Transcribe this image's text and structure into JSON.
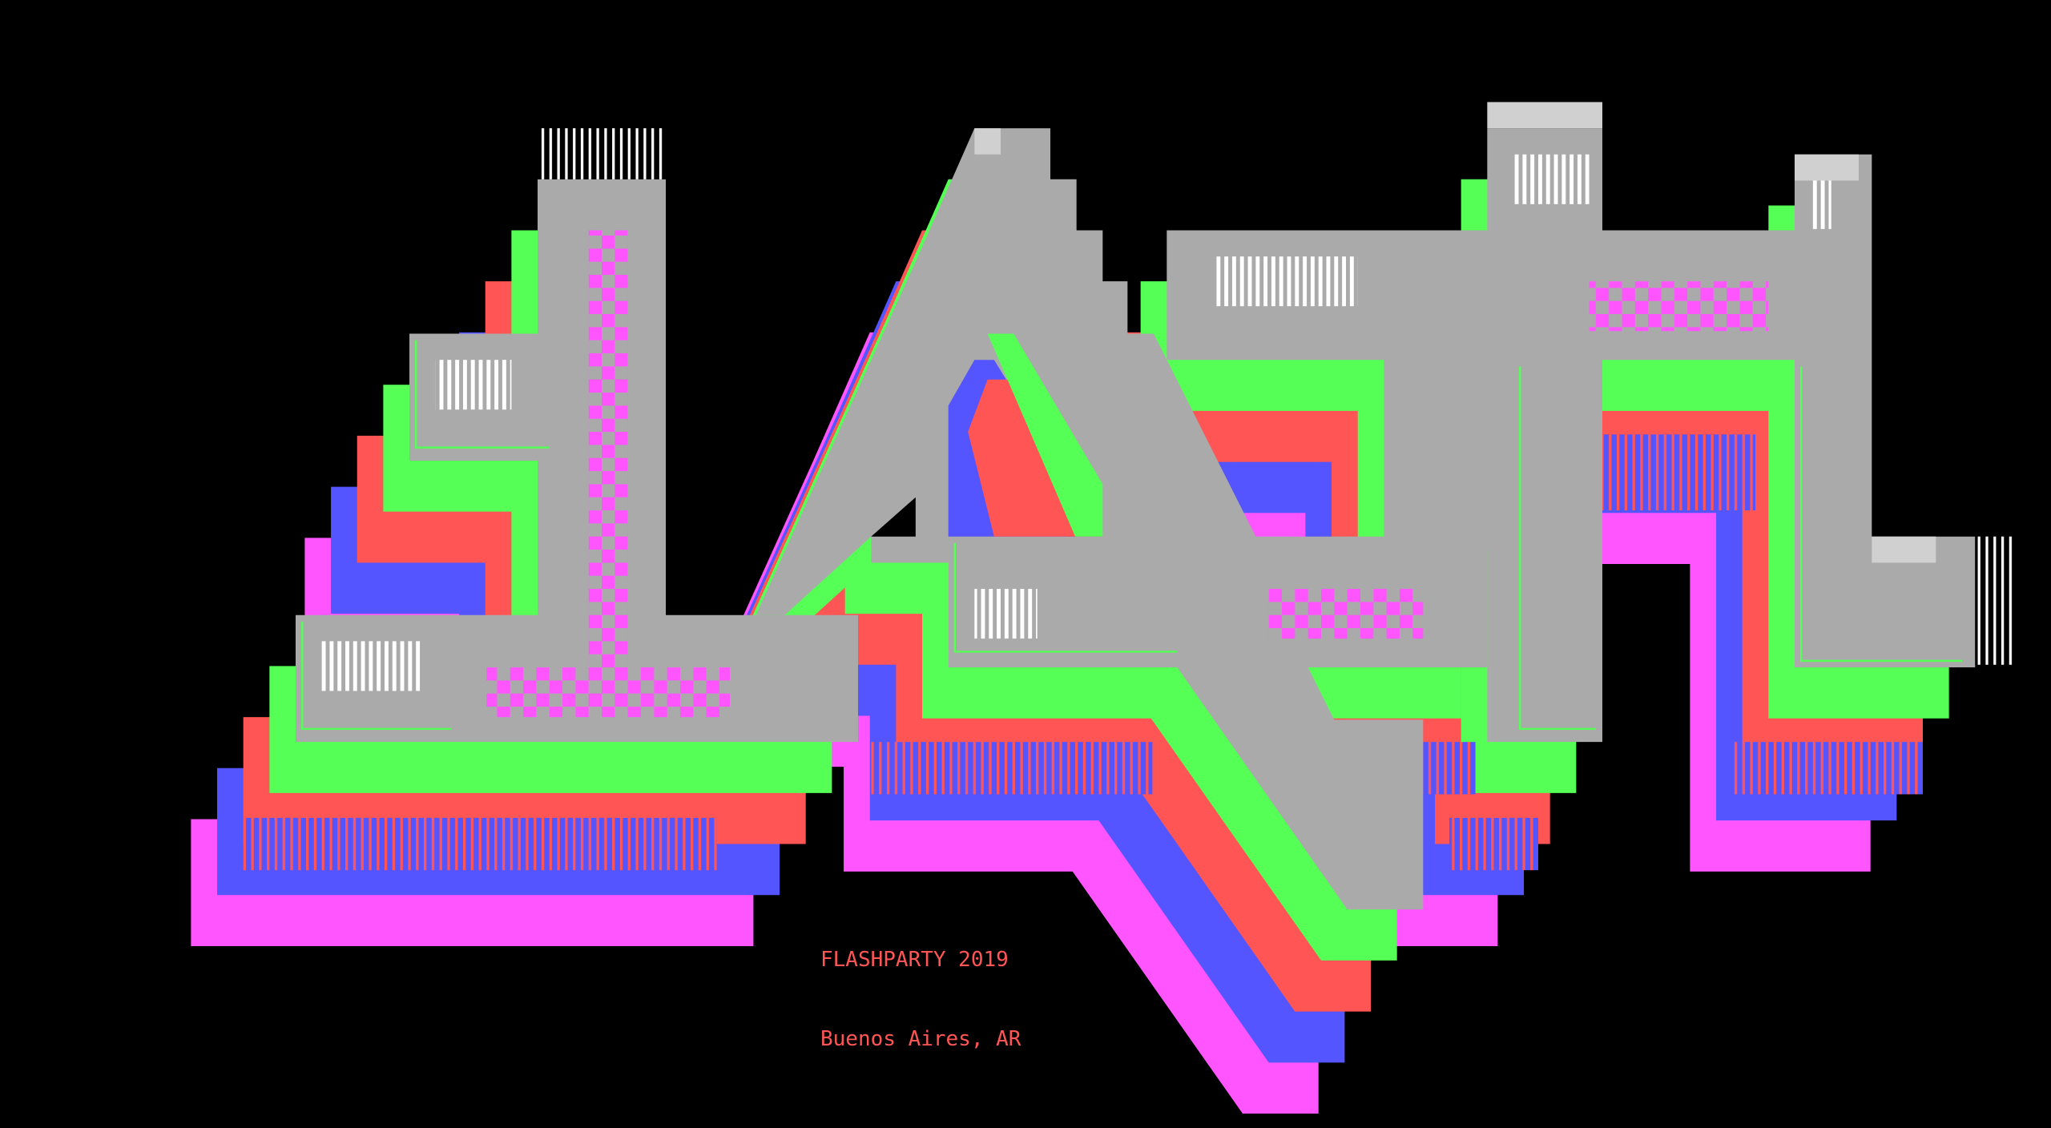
{
  "caption": {
    "line1": "FLASHPARTY 2019",
    "line2": "Buenos Aires, AR"
  },
  "logo": {
    "description_letters": "ANSI logo artwork",
    "palette": {
      "background": "#000000",
      "face": "#aaaaaa",
      "shadow_1": "#55ff55",
      "shadow_2": "#ff5555",
      "shadow_3": "#5555ff",
      "shadow_4": "#ff55ff",
      "highlight": "#ffffff",
      "caption": "#ff5555"
    }
  }
}
